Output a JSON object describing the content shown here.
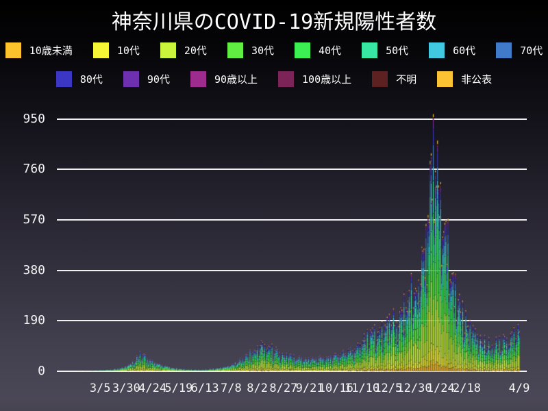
{
  "title": "神奈川県のCOVID-19新規陽性者数",
  "chart_data": {
    "type": "bar",
    "stacked": true,
    "title": "神奈川県のCOVID-19新規陽性者数",
    "xlabel": "",
    "ylabel": "",
    "grid": "horizontal-white-lines",
    "legend_position": "top-two-rows",
    "y_ticks": [
      0,
      190,
      380,
      570,
      760,
      950
    ],
    "ylim": [
      0,
      1010
    ],
    "x_tick_labels": [
      "3/5",
      "3/30",
      "4/24",
      "5/19",
      "6/13",
      "7/8",
      "8/2",
      "8/27",
      "9/21",
      "10/16",
      "11/10",
      "12/5",
      "12/30",
      "1/24",
      "2/18",
      "4/9"
    ],
    "x_ticks": [
      {
        "label": "3/5",
        "day": 40
      },
      {
        "label": "3/30",
        "day": 65
      },
      {
        "label": "4/24",
        "day": 90
      },
      {
        "label": "5/19",
        "day": 115
      },
      {
        "label": "6/13",
        "day": 140
      },
      {
        "label": "7/8",
        "day": 165
      },
      {
        "label": "8/2",
        "day": 190
      },
      {
        "label": "8/27",
        "day": 215
      },
      {
        "label": "9/21",
        "day": 240
      },
      {
        "label": "10/16",
        "day": 265
      },
      {
        "label": "11/10",
        "day": 290
      },
      {
        "label": "12/5",
        "day": 315
      },
      {
        "label": "12/30",
        "day": 340
      },
      {
        "label": "1/24",
        "day": 365
      },
      {
        "label": "2/18",
        "day": 390
      },
      {
        "label": "4/9",
        "day": 440
      }
    ],
    "series": [
      {
        "name": "10歳未満",
        "color": "#fcc32c",
        "share": 0.04
      },
      {
        "name": "10代",
        "color": "#f6f636",
        "share": 0.075
      },
      {
        "name": "20代",
        "color": "#c9f53c",
        "share": 0.235
      },
      {
        "name": "30代",
        "color": "#5fee41",
        "share": 0.155
      },
      {
        "name": "40代",
        "color": "#3cf054",
        "share": 0.14
      },
      {
        "name": "50代",
        "color": "#38e8a2",
        "share": 0.125
      },
      {
        "name": "60代",
        "color": "#41c9e2",
        "share": 0.075
      },
      {
        "name": "70代",
        "color": "#3f7bc9",
        "share": 0.06
      },
      {
        "name": "80代",
        "color": "#3b36c4",
        "share": 0.045
      },
      {
        "name": "90代",
        "color": "#6e30af",
        "share": 0.022
      },
      {
        "name": "90歳以上",
        "color": "#9e2c8e",
        "share": 0.008
      },
      {
        "name": "100歳以上",
        "color": "#7c2458",
        "share": 0.002
      },
      {
        "name": "不明",
        "color": "#5e2122",
        "share": 0.005
      },
      {
        "name": "非公表",
        "color": "#fbc334",
        "share": 0.013
      }
    ],
    "envelope_daily_totals": [
      [
        0,
        0
      ],
      [
        10,
        0
      ],
      [
        20,
        1
      ],
      [
        30,
        2
      ],
      [
        36,
        3
      ],
      [
        45,
        5
      ],
      [
        55,
        8
      ],
      [
        63,
        14
      ],
      [
        71,
        32
      ],
      [
        77,
        58
      ],
      [
        84,
        50
      ],
      [
        91,
        34
      ],
      [
        98,
        24
      ],
      [
        105,
        17
      ],
      [
        112,
        11
      ],
      [
        119,
        8
      ],
      [
        126,
        6
      ],
      [
        133,
        5
      ],
      [
        140,
        6
      ],
      [
        147,
        9
      ],
      [
        154,
        13
      ],
      [
        161,
        19
      ],
      [
        168,
        30
      ],
      [
        175,
        45
      ],
      [
        182,
        62
      ],
      [
        189,
        80
      ],
      [
        196,
        92
      ],
      [
        203,
        78
      ],
      [
        210,
        68
      ],
      [
        217,
        58
      ],
      [
        224,
        54
      ],
      [
        231,
        49
      ],
      [
        238,
        45
      ],
      [
        245,
        47
      ],
      [
        252,
        50
      ],
      [
        259,
        54
      ],
      [
        266,
        60
      ],
      [
        273,
        66
      ],
      [
        280,
        75
      ],
      [
        287,
        95
      ],
      [
        294,
        125
      ],
      [
        301,
        145
      ],
      [
        308,
        155
      ],
      [
        315,
        165
      ],
      [
        322,
        185
      ],
      [
        329,
        215
      ],
      [
        336,
        265
      ],
      [
        341,
        330
      ],
      [
        344,
        340
      ],
      [
        350,
        470
      ],
      [
        354,
        620
      ],
      [
        358,
        830
      ],
      [
        362,
        720
      ],
      [
        365,
        560
      ],
      [
        372,
        420
      ],
      [
        379,
        300
      ],
      [
        386,
        215
      ],
      [
        393,
        160
      ],
      [
        400,
        125
      ],
      [
        407,
        103
      ],
      [
        414,
        96
      ],
      [
        421,
        102
      ],
      [
        428,
        112
      ],
      [
        433,
        128
      ],
      [
        440,
        142
      ]
    ],
    "weekday_factors": [
      0.8,
      1.15,
      0.62,
      0.85,
      1.0,
      1.1,
      1.05
    ],
    "max_value": 995,
    "peak": {
      "x_label_near": "1/24",
      "approx_value": 990
    }
  },
  "legend": {
    "row1_count": 8,
    "row2_count": 6
  },
  "axes": {
    "y_label_color": "#f2f2f2",
    "grid_color": "#fafafa"
  }
}
